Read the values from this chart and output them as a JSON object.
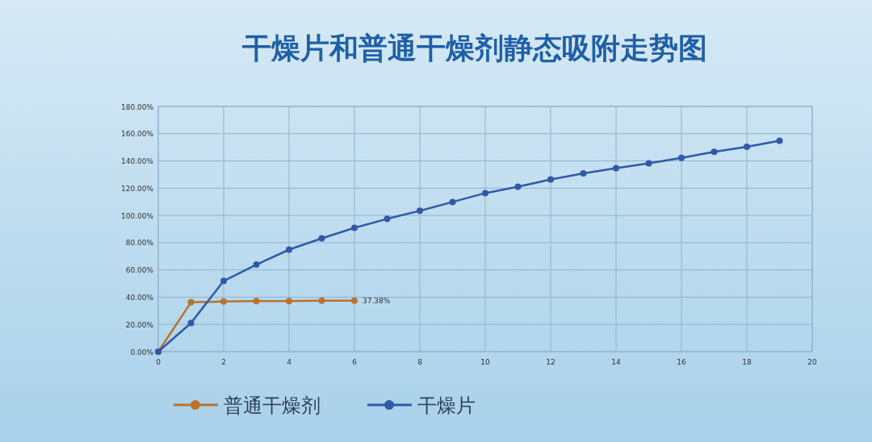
{
  "chart_data": {
    "type": "line",
    "title": "干燥片和普通干燥剂静态吸附走势图",
    "x": [
      0,
      1,
      2,
      3,
      4,
      5,
      6,
      7,
      8,
      9,
      10,
      11,
      12,
      13,
      14,
      15,
      16,
      17,
      18,
      19
    ],
    "series": [
      {
        "name": "普通干燥剂",
        "color": "#b8732e",
        "x": [
          0,
          1,
          2,
          3,
          4,
          5,
          6
        ],
        "values": [
          0,
          36.2,
          36.8,
          37.2,
          37.2,
          37.4,
          37.38
        ],
        "value_labels": [
          null,
          null,
          null,
          null,
          null,
          null,
          "37.38%"
        ]
      },
      {
        "name": "干燥片",
        "color": "#2f5aa8",
        "values": [
          0,
          21.0,
          51.9,
          63.9,
          74.9,
          83.2,
          90.9,
          97.5,
          103.4,
          109.9,
          116.4,
          121.1,
          126.4,
          130.8,
          134.7,
          138.3,
          142.2,
          146.7,
          150.4,
          154.8
        ]
      }
    ],
    "xlim": [
      0,
      20
    ],
    "xticks": [
      0,
      2,
      4,
      6,
      8,
      10,
      12,
      14,
      16,
      18,
      20
    ],
    "ylim": [
      0,
      180
    ],
    "yticks": [
      {
        "value": 0,
        "label": "0.00%"
      },
      {
        "value": 20,
        "label": "20.00%"
      },
      {
        "value": 40,
        "label": "40.00%"
      },
      {
        "value": 60,
        "label": "60.00%"
      },
      {
        "value": 80,
        "label": "80.00%"
      },
      {
        "value": 100,
        "label": "100.00%"
      },
      {
        "value": 120,
        "label": "120.00%"
      },
      {
        "value": 140,
        "label": "140.00%"
      },
      {
        "value": 160,
        "label": "160.00%"
      },
      {
        "value": 180,
        "label": "180.00%"
      }
    ],
    "grid": true,
    "legend": "bottom",
    "marker": "circle",
    "line_style": "solid"
  }
}
